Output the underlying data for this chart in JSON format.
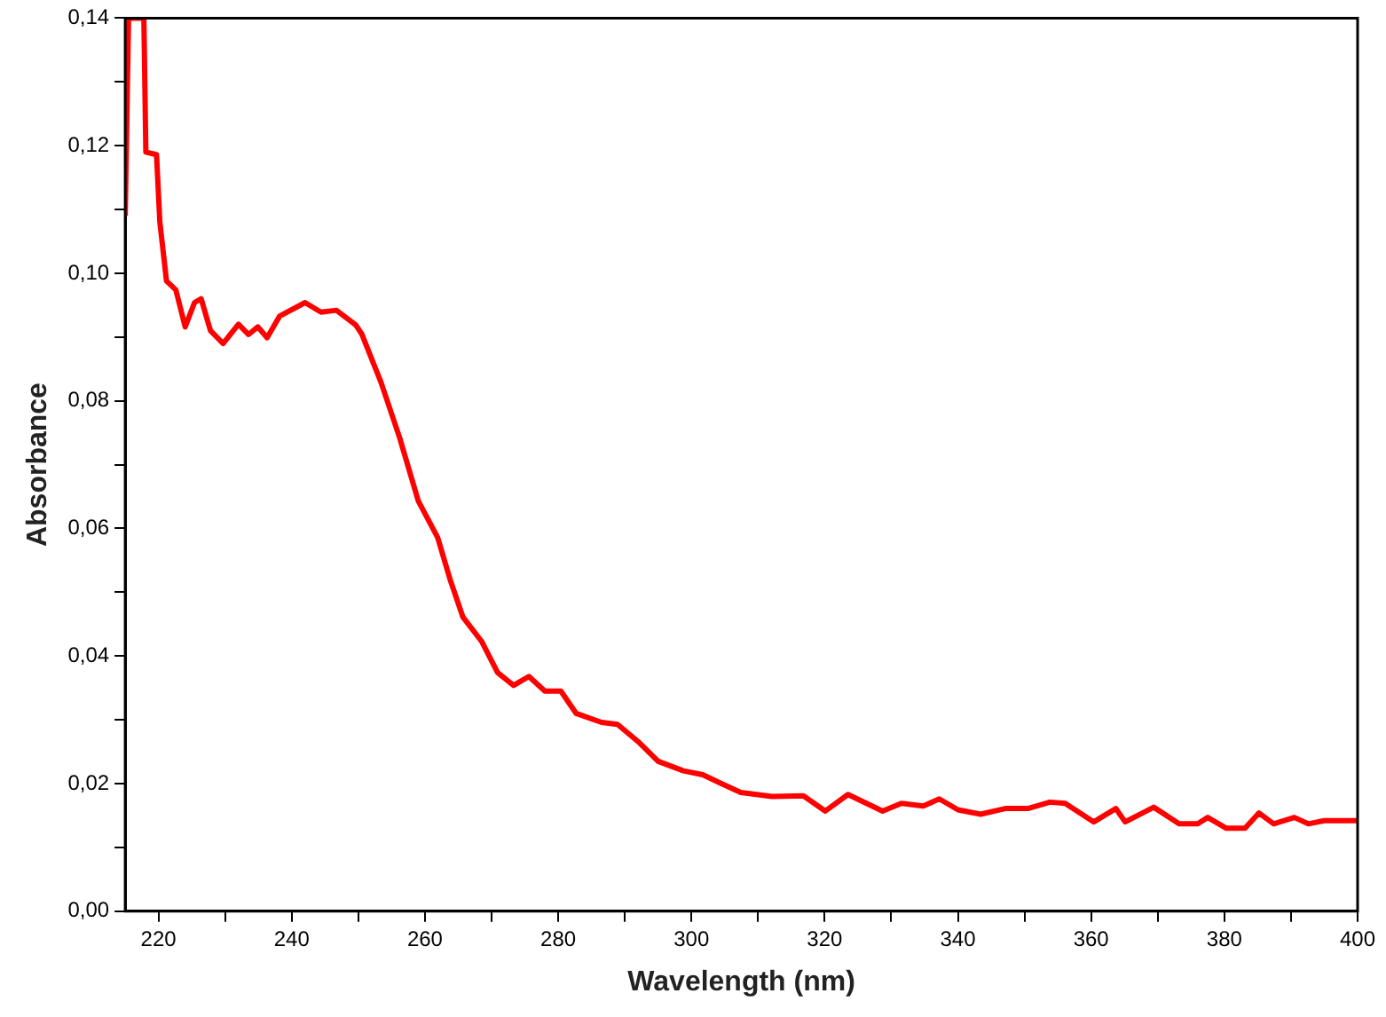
{
  "chart_data": {
    "type": "line",
    "xlabel": "Wavelength (nm)",
    "ylabel": "Absorbance",
    "color": "#ff0000",
    "marker": "none",
    "line_style": "solid",
    "grid": false,
    "legend": false,
    "xlim": [
      215,
      400
    ],
    "xticks": [
      220,
      {
        "value": 230,
        "label": null
      },
      240,
      {
        "value": 250,
        "label": null
      },
      260,
      {
        "value": 270,
        "label": null
      },
      280,
      {
        "value": 290,
        "label": null
      },
      300,
      {
        "value": 310,
        "label": null
      },
      320,
      {
        "value": 330,
        "label": null
      },
      340,
      {
        "value": 350,
        "label": null
      },
      360,
      {
        "value": 370,
        "label": null
      },
      380,
      {
        "value": 390,
        "label": null
      },
      400
    ],
    "ylim": [
      0,
      0.14
    ],
    "yticks": [
      {
        "value": 0,
        "label": "0,00"
      },
      {
        "value": 0.01,
        "label": null
      },
      {
        "value": 0.02,
        "label": "0,02"
      },
      {
        "value": 0.03,
        "label": null
      },
      {
        "value": 0.04,
        "label": "0,04"
      },
      {
        "value": 0.05,
        "label": null
      },
      {
        "value": 0.06,
        "label": "0,06"
      },
      {
        "value": 0.07,
        "label": null
      },
      {
        "value": 0.08,
        "label": "0,08"
      },
      {
        "value": 0.09,
        "label": null
      },
      {
        "value": 0.1,
        "label": "0,10"
      },
      {
        "value": 0.11,
        "label": null
      },
      {
        "value": 0.12,
        "label": "0,12"
      },
      {
        "value": 0.13,
        "label": null
      },
      {
        "value": 0.14,
        "label": "0,14"
      }
    ],
    "x": [
      215,
      215.5,
      217.8,
      218.1,
      219.7,
      220.2,
      221.2,
      222.6,
      224,
      225.4,
      226.4,
      227.8,
      229.7,
      232,
      233.5,
      234.9,
      236.3,
      238.2,
      242,
      244.4,
      246.7,
      249.6,
      250.5,
      253.4,
      256.2,
      259,
      261.9,
      263.8,
      265.7,
      268.5,
      270.9,
      273.3,
      275.6,
      278,
      280.4,
      282.7,
      286.5,
      288.9,
      292.2,
      295,
      298.8,
      301.7,
      304.5,
      307.4,
      312.1,
      316.8,
      320.1,
      323.5,
      328.7,
      331.5,
      334.8,
      337.2,
      340,
      343.4,
      347.1,
      350.5,
      353.8,
      356.1,
      360.4,
      363.7,
      365.1,
      369.4,
      373.2,
      376,
      377.5,
      380.3,
      383.1,
      385.2,
      387.4,
      390.5,
      392.6,
      395,
      398.8,
      400
    ],
    "values": [
      0.109,
      0.14,
      0.14,
      0.119,
      0.1186,
      0.108,
      0.0988,
      0.0974,
      0.0916,
      0.0954,
      0.096,
      0.091,
      0.089,
      0.092,
      0.0904,
      0.0916,
      0.0899,
      0.0933,
      0.0954,
      0.0939,
      0.0942,
      0.0919,
      0.0905,
      0.0829,
      0.0742,
      0.0643,
      0.0586,
      0.0519,
      0.0461,
      0.0423,
      0.0374,
      0.0354,
      0.0368,
      0.0345,
      0.0345,
      0.031,
      0.0296,
      0.0293,
      0.0264,
      0.0235,
      0.022,
      0.0214,
      0.02,
      0.0186,
      0.018,
      0.0181,
      0.0157,
      0.0183,
      0.0157,
      0.0169,
      0.0165,
      0.0176,
      0.0159,
      0.0152,
      0.0161,
      0.0161,
      0.0171,
      0.0169,
      0.014,
      0.0161,
      0.014,
      0.0163,
      0.0137,
      0.0137,
      0.0147,
      0.013,
      0.013,
      0.0154,
      0.0137,
      0.0147,
      0.0137,
      0.0142,
      0.0142,
      0.0142
    ]
  }
}
